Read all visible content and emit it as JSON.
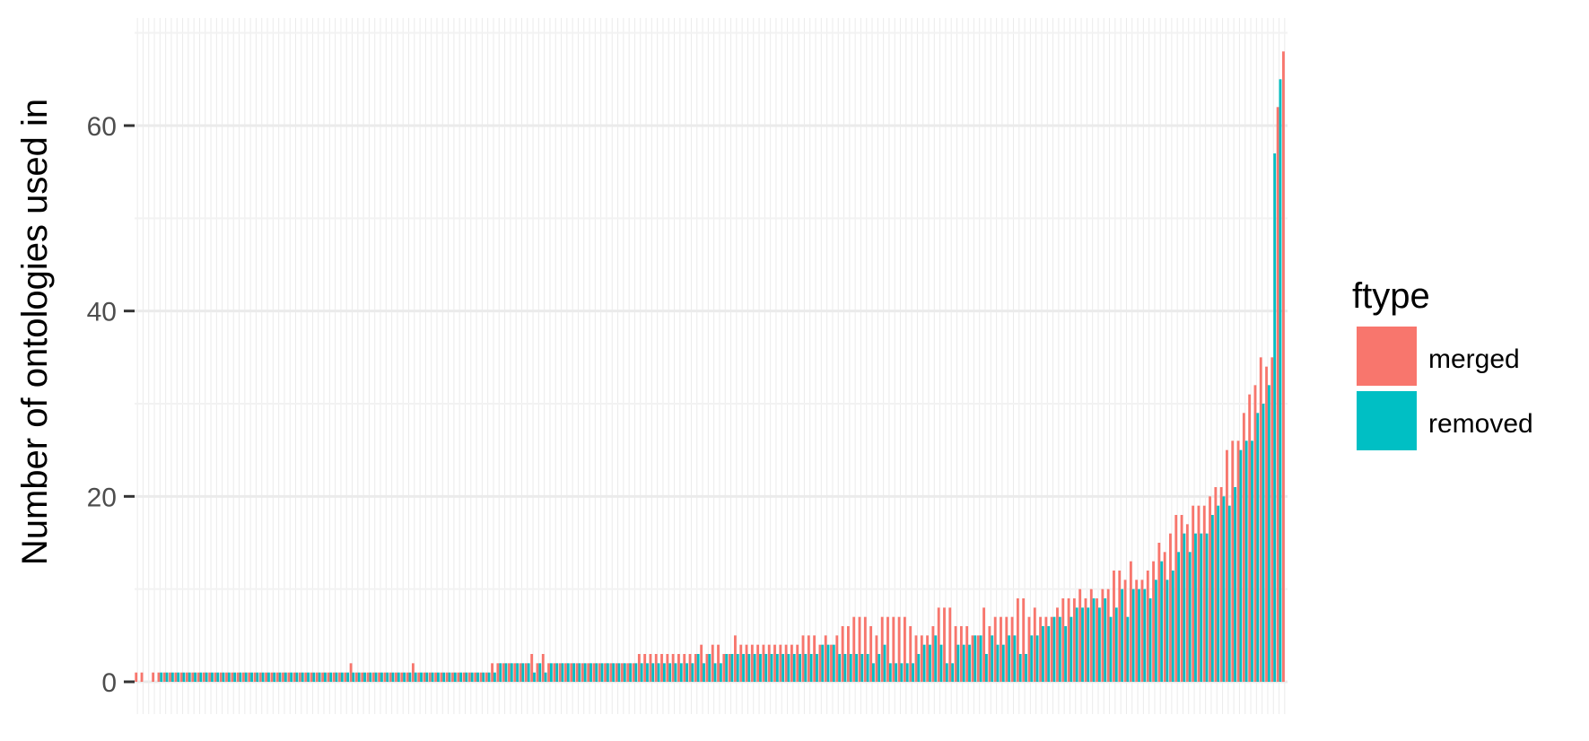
{
  "chart_data": {
    "type": "bar",
    "ylabel": "Number of ontologies used in",
    "xlabel": "",
    "ylim": [
      0,
      71
    ],
    "yticks": [
      0,
      20,
      40,
      60
    ],
    "grid": true,
    "legend": {
      "title": "ftype",
      "position": "right",
      "entries": [
        {
          "name": "merged",
          "color": "#F8766D"
        },
        {
          "name": "removed",
          "color": "#00BFC4"
        }
      ]
    },
    "series": [
      {
        "name": "merged",
        "color": "#F8766D",
        "values": [
          1,
          1,
          0,
          1,
          1,
          1,
          1,
          1,
          1,
          1,
          1,
          1,
          1,
          1,
          1,
          1,
          1,
          1,
          1,
          1,
          1,
          1,
          1,
          1,
          1,
          1,
          1,
          1,
          1,
          1,
          1,
          1,
          1,
          1,
          1,
          1,
          1,
          1,
          2,
          1,
          1,
          1,
          1,
          1,
          1,
          1,
          1,
          1,
          1,
          2,
          1,
          1,
          1,
          1,
          1,
          1,
          1,
          1,
          1,
          1,
          1,
          1,
          1,
          2,
          2,
          2,
          2,
          2,
          2,
          2,
          3,
          2,
          3,
          2,
          2,
          2,
          2,
          2,
          2,
          2,
          2,
          2,
          2,
          2,
          2,
          2,
          2,
          2,
          2,
          3,
          3,
          3,
          3,
          3,
          3,
          3,
          3,
          3,
          3,
          3,
          4,
          3,
          4,
          4,
          3,
          3,
          5,
          4,
          4,
          4,
          4,
          4,
          4,
          4,
          4,
          4,
          4,
          4,
          5,
          5,
          5,
          4,
          5,
          4,
          5,
          6,
          6,
          7,
          7,
          7,
          6,
          5,
          7,
          7,
          7,
          7,
          7,
          6,
          5,
          5,
          5,
          6,
          8,
          8,
          8,
          6,
          6,
          6,
          5,
          5,
          8,
          6,
          7,
          7,
          7,
          7,
          9,
          9,
          7,
          8,
          7,
          7,
          7,
          8,
          9,
          9,
          9,
          10,
          9,
          10,
          9,
          10,
          10,
          12,
          12,
          11,
          13,
          11,
          11,
          12,
          13,
          15,
          14,
          16,
          18,
          18,
          17,
          19,
          19,
          19,
          20,
          21,
          21,
          25,
          26,
          26,
          29,
          31,
          32,
          35,
          34,
          35,
          62,
          68
        ]
      },
      {
        "name": "removed",
        "color": "#00BFC4",
        "values": [
          0,
          0,
          0,
          0,
          1,
          1,
          1,
          1,
          1,
          1,
          1,
          1,
          1,
          1,
          1,
          1,
          1,
          1,
          1,
          1,
          1,
          1,
          1,
          1,
          1,
          1,
          1,
          1,
          1,
          1,
          1,
          1,
          1,
          1,
          1,
          1,
          1,
          1,
          1,
          1,
          1,
          1,
          1,
          1,
          1,
          1,
          1,
          1,
          1,
          1,
          1,
          1,
          1,
          1,
          1,
          1,
          1,
          1,
          1,
          1,
          1,
          1,
          1,
          1,
          2,
          2,
          2,
          2,
          2,
          2,
          1,
          2,
          1,
          2,
          2,
          2,
          2,
          2,
          2,
          2,
          2,
          2,
          2,
          2,
          2,
          2,
          2,
          2,
          2,
          2,
          2,
          2,
          2,
          2,
          2,
          2,
          2,
          2,
          2,
          3,
          2,
          3,
          2,
          2,
          3,
          3,
          3,
          3,
          3,
          3,
          3,
          3,
          3,
          3,
          3,
          3,
          3,
          3,
          3,
          3,
          3,
          4,
          4,
          4,
          3,
          3,
          3,
          3,
          3,
          3,
          2,
          3,
          4,
          2,
          2,
          2,
          2,
          2,
          3,
          4,
          4,
          5,
          4,
          2,
          2,
          4,
          4,
          4,
          5,
          5,
          3,
          5,
          4,
          4,
          5,
          5,
          3,
          3,
          5,
          5,
          6,
          6,
          7,
          7,
          6,
          7,
          8,
          8,
          8,
          9,
          8,
          9,
          7,
          8,
          10,
          7,
          10,
          10,
          10,
          9,
          11,
          13,
          11,
          12,
          14,
          16,
          14,
          16,
          16,
          16,
          18,
          19,
          20,
          19,
          21,
          25,
          26,
          26,
          29,
          30,
          32,
          57,
          65
        ]
      }
    ]
  }
}
